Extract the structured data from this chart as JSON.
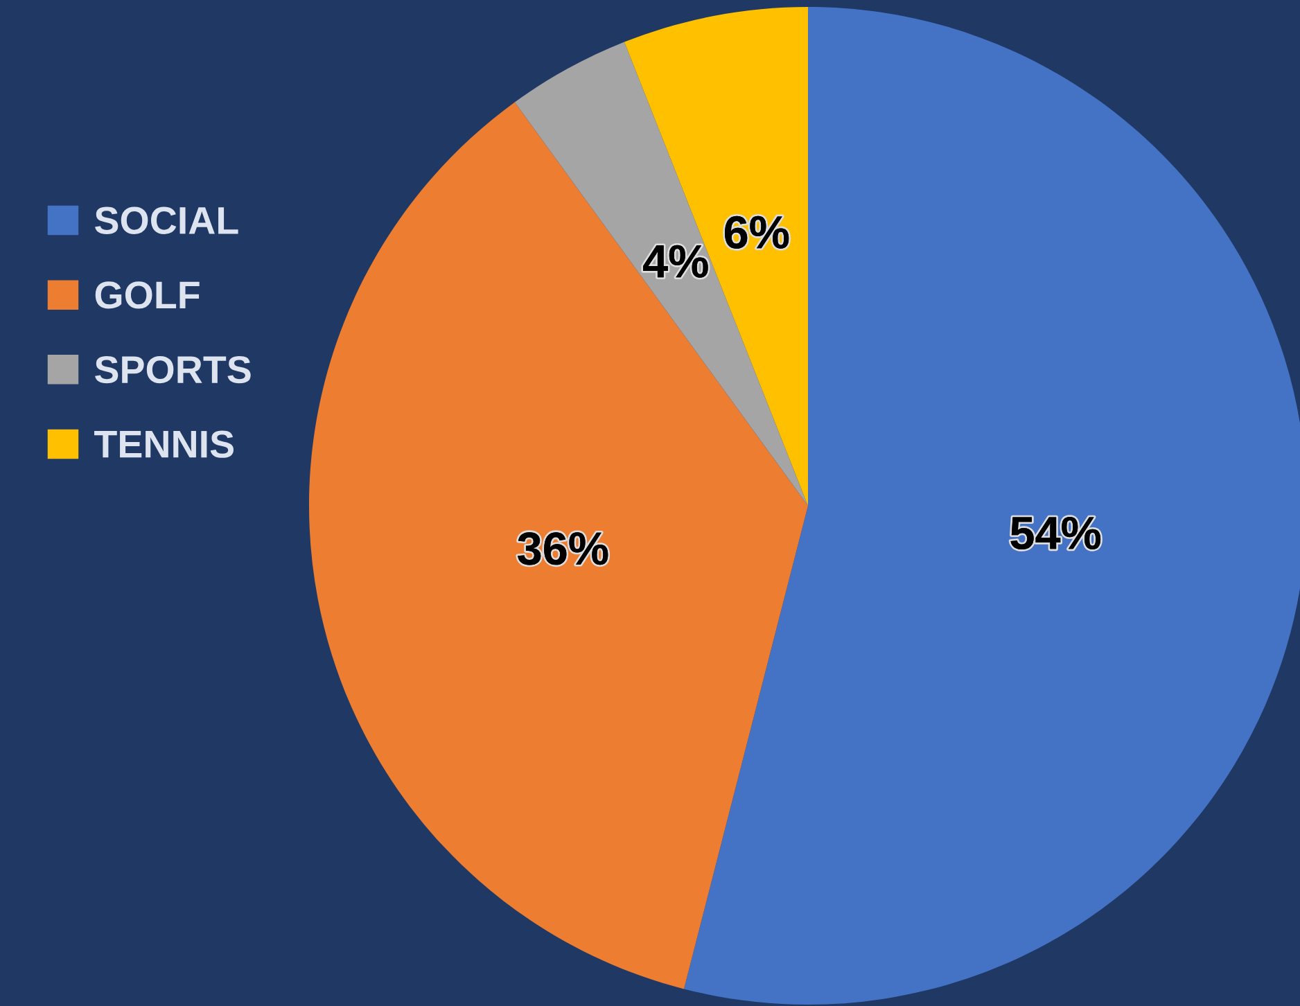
{
  "chart_data": {
    "type": "pie",
    "categories": [
      "SOCIAL",
      "GOLF",
      "SPORTS",
      "TENNIS"
    ],
    "values": [
      54,
      36,
      4,
      6
    ],
    "colors": [
      "#4472c4",
      "#ed7d31",
      "#a5a5a5",
      "#ffc000"
    ],
    "value_labels": [
      "54%",
      "36%",
      "4%",
      "6%"
    ],
    "legend": "left"
  }
}
